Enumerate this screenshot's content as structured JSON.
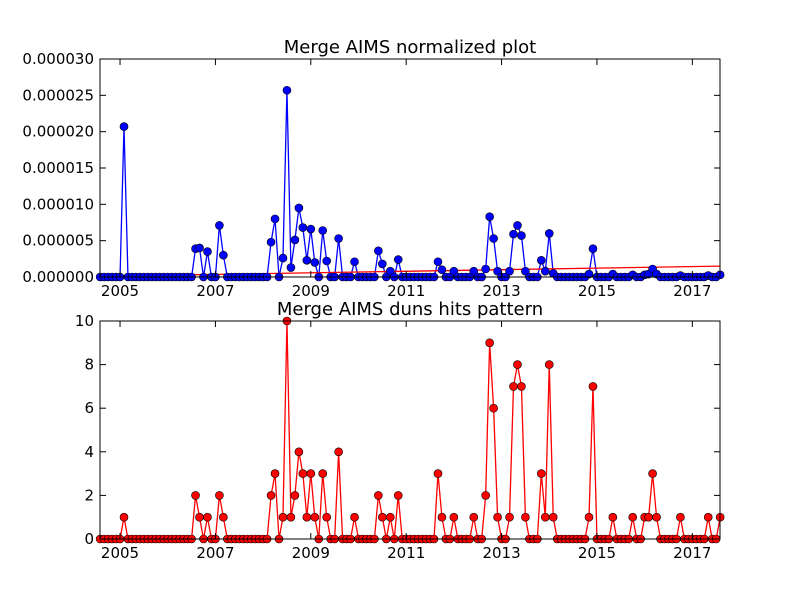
{
  "chart_data": [
    {
      "type": "line",
      "title": "Merge AIMS normalized plot",
      "xlabel": "",
      "ylabel": "",
      "xlim": [
        2004.58,
        2017.58
      ],
      "ylim": [
        0,
        3e-05
      ],
      "x_ticks": [
        "2005",
        "2007",
        "2009",
        "2011",
        "2013",
        "2015",
        "2017"
      ],
      "y_ticks": [
        "0.000000",
        "0.000005",
        "0.000010",
        "0.000015",
        "0.000020",
        "0.000025",
        "0.000030"
      ],
      "line_color": "#0000ff",
      "trend_color": "#ff0000",
      "grid": false,
      "series": [
        {
          "points": [
            [
              2005.08,
              2.07e-05
            ],
            [
              2006.58,
              3.9e-06
            ],
            [
              2006.67,
              4e-06
            ],
            [
              2006.83,
              3.5e-06
            ],
            [
              2007.08,
              7.1e-06
            ],
            [
              2007.17,
              3e-06
            ],
            [
              2008.17,
              4.8e-06
            ],
            [
              2008.25,
              8e-06
            ],
            [
              2008.42,
              2.6e-06
            ],
            [
              2008.5,
              2.57e-05
            ],
            [
              2008.58,
              1.3e-06
            ],
            [
              2008.67,
              5.1e-06
            ],
            [
              2008.75,
              9.5e-06
            ],
            [
              2008.83,
              6.8e-06
            ],
            [
              2008.92,
              2.3e-06
            ],
            [
              2009.0,
              6.6e-06
            ],
            [
              2009.08,
              2e-06
            ],
            [
              2009.25,
              6.4e-06
            ],
            [
              2009.33,
              2.2e-06
            ],
            [
              2009.58,
              5.3e-06
            ],
            [
              2009.92,
              2.1e-06
            ],
            [
              2010.42,
              3.6e-06
            ],
            [
              2010.5,
              1.8e-06
            ],
            [
              2010.67,
              8e-07
            ],
            [
              2010.83,
              2.4e-06
            ],
            [
              2011.67,
              2.1e-06
            ],
            [
              2011.75,
              1e-06
            ],
            [
              2012.0,
              8e-07
            ],
            [
              2012.42,
              8e-07
            ],
            [
              2012.67,
              1.1e-06
            ],
            [
              2012.75,
              8.3e-06
            ],
            [
              2012.83,
              5.3e-06
            ],
            [
              2012.92,
              8e-07
            ],
            [
              2013.17,
              8e-07
            ],
            [
              2013.25,
              5.9e-06
            ],
            [
              2013.33,
              7.1e-06
            ],
            [
              2013.42,
              5.7e-06
            ],
            [
              2013.5,
              8e-07
            ],
            [
              2013.83,
              2.3e-06
            ],
            [
              2013.92,
              8e-07
            ],
            [
              2014.0,
              6e-06
            ],
            [
              2014.08,
              5e-07
            ],
            [
              2014.83,
              4e-07
            ],
            [
              2014.92,
              3.9e-06
            ],
            [
              2015.33,
              4e-07
            ],
            [
              2015.75,
              3e-07
            ],
            [
              2016.0,
              3e-07
            ],
            [
              2016.08,
              4e-07
            ],
            [
              2016.17,
              1.1e-06
            ],
            [
              2016.25,
              4e-07
            ],
            [
              2016.75,
              2e-07
            ],
            [
              2017.33,
              2e-07
            ],
            [
              2017.58,
              3e-07
            ]
          ]
        }
      ],
      "trend_line": {
        "x": [
          2004.58,
          2017.58
        ],
        "y": [
          1e-07,
          1.5e-06
        ]
      }
    },
    {
      "type": "line",
      "title": "Merge AIMS duns hits pattern",
      "xlabel": "",
      "ylabel": "",
      "xlim": [
        2004.58,
        2017.58
      ],
      "ylim": [
        0,
        10
      ],
      "x_ticks": [
        "2005",
        "2007",
        "2009",
        "2011",
        "2013",
        "2015",
        "2017"
      ],
      "y_ticks": [
        "0",
        "2",
        "4",
        "6",
        "8",
        "10"
      ],
      "line_color": "#ff0000",
      "grid": false,
      "series": [
        {
          "points": [
            [
              2005.08,
              1
            ],
            [
              2006.58,
              2
            ],
            [
              2006.67,
              1
            ],
            [
              2006.83,
              1
            ],
            [
              2007.08,
              2
            ],
            [
              2007.17,
              1
            ],
            [
              2008.17,
              2
            ],
            [
              2008.25,
              3
            ],
            [
              2008.42,
              1
            ],
            [
              2008.5,
              10
            ],
            [
              2008.58,
              1
            ],
            [
              2008.67,
              2
            ],
            [
              2008.75,
              4
            ],
            [
              2008.83,
              3
            ],
            [
              2008.92,
              1
            ],
            [
              2009.0,
              3
            ],
            [
              2009.08,
              1
            ],
            [
              2009.25,
              3
            ],
            [
              2009.33,
              1
            ],
            [
              2009.58,
              4
            ],
            [
              2009.92,
              1
            ],
            [
              2010.42,
              2
            ],
            [
              2010.5,
              1
            ],
            [
              2010.67,
              1
            ],
            [
              2010.83,
              2
            ],
            [
              2011.67,
              3
            ],
            [
              2011.75,
              1
            ],
            [
              2012.0,
              1
            ],
            [
              2012.42,
              1
            ],
            [
              2012.67,
              2
            ],
            [
              2012.75,
              9
            ],
            [
              2012.83,
              6
            ],
            [
              2012.92,
              1
            ],
            [
              2013.17,
              1
            ],
            [
              2013.25,
              7
            ],
            [
              2013.33,
              8
            ],
            [
              2013.42,
              7
            ],
            [
              2013.5,
              1
            ],
            [
              2013.83,
              3
            ],
            [
              2013.92,
              1
            ],
            [
              2014.0,
              8
            ],
            [
              2014.08,
              1
            ],
            [
              2014.83,
              1
            ],
            [
              2014.92,
              7
            ],
            [
              2015.33,
              1
            ],
            [
              2015.75,
              1
            ],
            [
              2016.0,
              1
            ],
            [
              2016.08,
              1
            ],
            [
              2016.17,
              3
            ],
            [
              2016.25,
              1
            ],
            [
              2016.75,
              1
            ],
            [
              2017.33,
              1
            ],
            [
              2017.58,
              1
            ]
          ]
        }
      ]
    }
  ]
}
